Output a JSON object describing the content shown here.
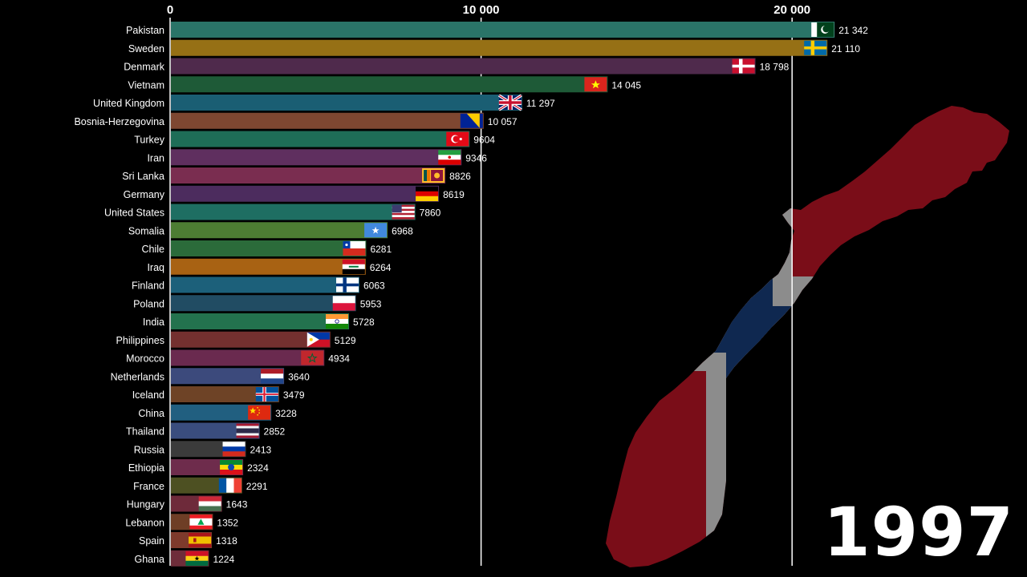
{
  "year_label": "1997",
  "chart_data": {
    "type": "bar",
    "orientation": "horizontal",
    "title": "",
    "xlabel": "",
    "ylabel": "",
    "xlim": [
      0,
      22000
    ],
    "x_ticks": [
      0,
      10000,
      20000
    ],
    "x_tick_labels": [
      "0",
      "10 000",
      "20 000"
    ],
    "grid": "vertical lines at ticks",
    "categories": [
      "Pakistan",
      "Sweden",
      "Denmark",
      "Vietnam",
      "United Kingdom",
      "Bosnia-Herzegovina",
      "Turkey",
      "Iran",
      "Sri Lanka",
      "Germany",
      "United States",
      "Somalia",
      "Chile",
      "Iraq",
      "Finland",
      "Poland",
      "India",
      "Philippines",
      "Morocco",
      "Netherlands",
      "Iceland",
      "China",
      "Thailand",
      "Russia",
      "Ethiopia",
      "France",
      "Hungary",
      "Lebanon",
      "Spain",
      "Ghana"
    ],
    "values": [
      21342,
      21110,
      18798,
      14045,
      11297,
      10057,
      9604,
      9346,
      8826,
      8619,
      7860,
      6968,
      6281,
      6264,
      6063,
      5953,
      5728,
      5129,
      4934,
      3640,
      3479,
      3228,
      2852,
      2413,
      2324,
      2291,
      1643,
      1352,
      1318,
      1224
    ],
    "value_labels": [
      "21 342",
      "21 110",
      "18 798",
      "14 045",
      "11 297",
      "10 057",
      "9604",
      "9346",
      "8826",
      "8619",
      "7860",
      "6968",
      "6281",
      "6264",
      "6063",
      "5953",
      "5728",
      "5129",
      "4934",
      "3640",
      "3479",
      "3228",
      "2852",
      "2413",
      "2324",
      "2291",
      "1643",
      "1352",
      "1318",
      "1224"
    ],
    "bar_colors": [
      "#2a7468",
      "#967015",
      "#4f2a4c",
      "#1e5a37",
      "#1a5e73",
      "#7e4731",
      "#1e6d57",
      "#5f2f5f",
      "#7a2d50",
      "#4c2c5e",
      "#1e6e62",
      "#4d7d33",
      "#2b6b3a",
      "#a86213",
      "#1c607a",
      "#214c63",
      "#23724e",
      "#74302f",
      "#6a2a4f",
      "#3c4a7c",
      "#6e4326",
      "#215f80",
      "#3a4d7e",
      "#3b3b3b",
      "#6e2c4c",
      "#4d5022",
      "#6e2a3a",
      "#6e3e26",
      "#7e3a2c",
      "#6e2d3a"
    ],
    "flags": [
      "pakistan-flag",
      "sweden-flag",
      "denmark-flag",
      "vietnam-flag",
      "united-kingdom-flag",
      "bosnia-flag",
      "turkey-flag",
      "iran-flag",
      "sri-lanka-flag",
      "germany-flag",
      "united-states-flag",
      "somalia-flag",
      "chile-flag",
      "iraq-flag",
      "finland-flag",
      "poland-flag",
      "india-flag",
      "philippines-flag",
      "morocco-flag",
      "netherlands-flag",
      "iceland-flag",
      "china-flag",
      "thailand-flag",
      "russia-flag",
      "ethiopia-flag",
      "france-flag",
      "hungary-flag",
      "lebanon-flag",
      "spain-flag",
      "ghana-flag"
    ],
    "background_map": "norway-flag-map"
  }
}
